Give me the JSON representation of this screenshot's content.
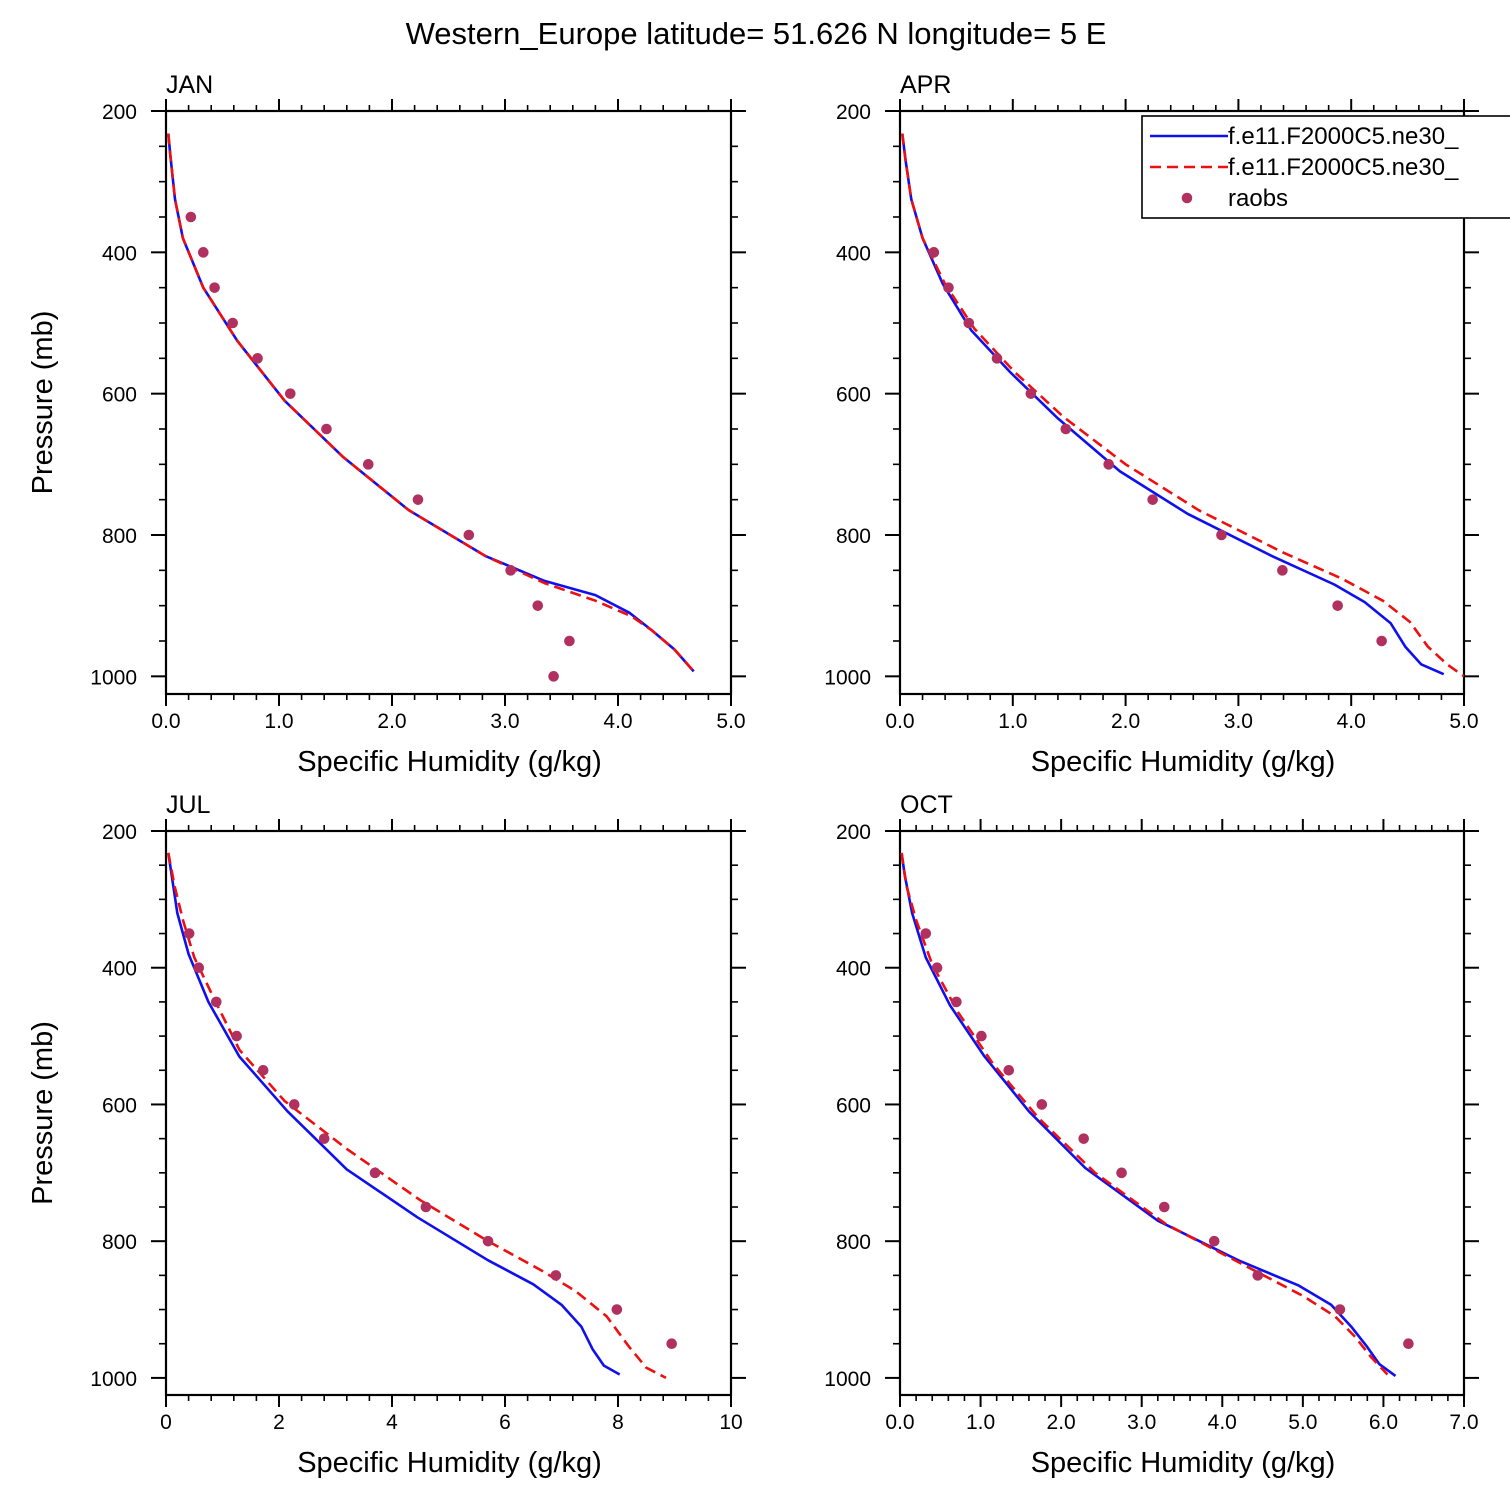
{
  "title": "Western_Europe  latitude= 51.626 N longitude= 5 E",
  "legend": {
    "placement": "top-right of APR panel",
    "entries": [
      "f.e11.F2000C5.ne30_",
      "f.e11.F2000C5.ne30_",
      "raobs"
    ]
  },
  "colors": {
    "model1": "#1010ee",
    "model2": "#ee1010",
    "obs": "#b03060"
  },
  "chart_data": [
    {
      "type": "line",
      "title": "JAN",
      "xlabel": "Specific Humidity (g/kg)",
      "ylabel": "Pressure (mb)",
      "xlim": [
        0,
        5
      ],
      "ylim": [
        200,
        1025
      ],
      "y_inverted": true,
      "xticks": [
        "0.0",
        "1.0",
        "2.0",
        "3.0",
        "4.0",
        "5.0"
      ],
      "yticks": [
        "200",
        "400",
        "600",
        "800",
        "1000"
      ],
      "series": [
        {
          "style": "solid",
          "points": [
            [
              0.02,
              232
            ],
            [
              0.04,
              265
            ],
            [
              0.08,
              325
            ],
            [
              0.15,
              380
            ],
            [
              0.33,
              450
            ],
            [
              0.63,
              525
            ],
            [
              1.05,
              610
            ],
            [
              1.57,
              690
            ],
            [
              2.15,
              765
            ],
            [
              2.83,
              830
            ],
            [
              3.35,
              865
            ],
            [
              3.8,
              885
            ],
            [
              4.1,
              910
            ],
            [
              4.3,
              935
            ],
            [
              4.5,
              962
            ],
            [
              4.67,
              993
            ]
          ]
        },
        {
          "style": "dashed",
          "points": [
            [
              0.02,
              232
            ],
            [
              0.04,
              265
            ],
            [
              0.08,
              325
            ],
            [
              0.15,
              380
            ],
            [
              0.33,
              450
            ],
            [
              0.63,
              525
            ],
            [
              1.05,
              610
            ],
            [
              1.57,
              690
            ],
            [
              2.15,
              765
            ],
            [
              2.83,
              830
            ],
            [
              3.35,
              868
            ],
            [
              3.8,
              893
            ],
            [
              4.12,
              915
            ],
            [
              4.3,
              935
            ],
            [
              4.5,
              962
            ],
            [
              4.67,
              993
            ]
          ]
        }
      ],
      "observations": [
        [
          0.22,
          350
        ],
        [
          0.33,
          400
        ],
        [
          0.43,
          450
        ],
        [
          0.59,
          500
        ],
        [
          0.81,
          550
        ],
        [
          1.1,
          600
        ],
        [
          1.42,
          650
        ],
        [
          1.79,
          700
        ],
        [
          2.23,
          750
        ],
        [
          2.68,
          800
        ],
        [
          3.05,
          850
        ],
        [
          3.29,
          900
        ],
        [
          3.57,
          950
        ],
        [
          3.43,
          1000
        ]
      ]
    },
    {
      "type": "line",
      "title": "APR",
      "xlabel": "Specific Humidity (g/kg)",
      "ylabel": "",
      "xlim": [
        0,
        5
      ],
      "ylim": [
        200,
        1025
      ],
      "y_inverted": true,
      "xticks": [
        "0.0",
        "1.0",
        "2.0",
        "3.0",
        "4.0",
        "5.0"
      ],
      "yticks": [
        "200",
        "400",
        "600",
        "800",
        "1000"
      ],
      "series": [
        {
          "style": "solid",
          "points": [
            [
              0.02,
              232
            ],
            [
              0.05,
              270
            ],
            [
              0.1,
              325
            ],
            [
              0.2,
              380
            ],
            [
              0.38,
              445
            ],
            [
              0.63,
              510
            ],
            [
              0.98,
              570
            ],
            [
              1.4,
              635
            ],
            [
              1.95,
              710
            ],
            [
              2.55,
              770
            ],
            [
              3.3,
              830
            ],
            [
              3.85,
              870
            ],
            [
              4.12,
              895
            ],
            [
              4.35,
              925
            ],
            [
              4.48,
              958
            ],
            [
              4.62,
              983
            ],
            [
              4.82,
              997
            ]
          ]
        },
        {
          "style": "dashed",
          "points": [
            [
              0.02,
              232
            ],
            [
              0.05,
              270
            ],
            [
              0.1,
              325
            ],
            [
              0.2,
              380
            ],
            [
              0.4,
              445
            ],
            [
              0.66,
              508
            ],
            [
              1.02,
              570
            ],
            [
              1.45,
              633
            ],
            [
              2.0,
              700
            ],
            [
              2.65,
              765
            ],
            [
              3.4,
              825
            ],
            [
              3.92,
              862
            ],
            [
              4.28,
              893
            ],
            [
              4.52,
              923
            ],
            [
              4.68,
              958
            ],
            [
              4.85,
              983
            ],
            [
              5.0,
              1000
            ]
          ]
        }
      ],
      "observations": [
        [
          0.3,
          400
        ],
        [
          0.43,
          450
        ],
        [
          0.61,
          500
        ],
        [
          0.86,
          550
        ],
        [
          1.16,
          600
        ],
        [
          1.47,
          650
        ],
        [
          1.85,
          700
        ],
        [
          2.24,
          750
        ],
        [
          2.85,
          800
        ],
        [
          3.39,
          850
        ],
        [
          3.88,
          900
        ],
        [
          4.27,
          950
        ]
      ]
    },
    {
      "type": "line",
      "title": "JUL",
      "xlabel": "Specific Humidity (g/kg)",
      "ylabel": "Pressure (mb)",
      "xlim": [
        0,
        10
      ],
      "ylim": [
        200,
        1025
      ],
      "y_inverted": true,
      "xticks": [
        "0",
        "2",
        "4",
        "6",
        "8",
        "10"
      ],
      "yticks": [
        "200",
        "400",
        "600",
        "800",
        "1000"
      ],
      "series": [
        {
          "style": "solid",
          "points": [
            [
              0.04,
              232
            ],
            [
              0.1,
              265
            ],
            [
              0.2,
              320
            ],
            [
              0.4,
              380
            ],
            [
              0.75,
              450
            ],
            [
              1.3,
              530
            ],
            [
              2.15,
              610
            ],
            [
              3.2,
              695
            ],
            [
              4.45,
              765
            ],
            [
              5.7,
              828
            ],
            [
              6.5,
              863
            ],
            [
              7.0,
              893
            ],
            [
              7.35,
              925
            ],
            [
              7.55,
              958
            ],
            [
              7.75,
              982
            ],
            [
              8.03,
              995
            ]
          ]
        },
        {
          "style": "dashed",
          "points": [
            [
              0.04,
              232
            ],
            [
              0.15,
              280
            ],
            [
              0.3,
              330
            ],
            [
              0.5,
              385
            ],
            [
              0.85,
              445
            ],
            [
              1.3,
              520
            ],
            [
              2.1,
              595
            ],
            [
              3.2,
              665
            ],
            [
              4.5,
              740
            ],
            [
              5.7,
              800
            ],
            [
              6.65,
              843
            ],
            [
              7.25,
              873
            ],
            [
              7.8,
              910
            ],
            [
              8.2,
              955
            ],
            [
              8.5,
              985
            ],
            [
              8.85,
              1000
            ]
          ]
        }
      ],
      "observations": [
        [
          0.41,
          350
        ],
        [
          0.58,
          400
        ],
        [
          0.89,
          450
        ],
        [
          1.25,
          500
        ],
        [
          1.72,
          550
        ],
        [
          2.27,
          600
        ],
        [
          2.8,
          650
        ],
        [
          3.7,
          700
        ],
        [
          4.6,
          750
        ],
        [
          5.7,
          800
        ],
        [
          6.9,
          850
        ],
        [
          7.98,
          900
        ],
        [
          8.95,
          950
        ]
      ]
    },
    {
      "type": "line",
      "title": "OCT",
      "xlabel": "Specific Humidity (g/kg)",
      "ylabel": "",
      "xlim": [
        0,
        7
      ],
      "ylim": [
        200,
        1025
      ],
      "y_inverted": true,
      "xticks": [
        "0.0",
        "1.0",
        "2.0",
        "3.0",
        "4.0",
        "5.0",
        "6.0",
        "7.0"
      ],
      "yticks": [
        "200",
        "400",
        "600",
        "800",
        "1000"
      ],
      "series": [
        {
          "style": "solid",
          "points": [
            [
              0.02,
              232
            ],
            [
              0.06,
              265
            ],
            [
              0.15,
              320
            ],
            [
              0.32,
              385
            ],
            [
              0.62,
              455
            ],
            [
              1.05,
              530
            ],
            [
              1.6,
              610
            ],
            [
              2.3,
              693
            ],
            [
              3.2,
              770
            ],
            [
              4.2,
              828
            ],
            [
              4.95,
              865
            ],
            [
              5.35,
              893
            ],
            [
              5.6,
              925
            ],
            [
              5.8,
              955
            ],
            [
              5.95,
              980
            ],
            [
              6.15,
              997
            ]
          ]
        },
        {
          "style": "dashed",
          "points": [
            [
              0.02,
              232
            ],
            [
              0.08,
              280
            ],
            [
              0.2,
              330
            ],
            [
              0.4,
              395
            ],
            [
              0.72,
              465
            ],
            [
              1.15,
              540
            ],
            [
              1.72,
              620
            ],
            [
              2.42,
              700
            ],
            [
              3.3,
              775
            ],
            [
              4.35,
              840
            ],
            [
              5.0,
              880
            ],
            [
              5.4,
              910
            ],
            [
              5.65,
              940
            ],
            [
              5.85,
              970
            ],
            [
              6.05,
              995
            ]
          ]
        }
      ],
      "observations": [
        [
          0.32,
          350
        ],
        [
          0.46,
          400
        ],
        [
          0.7,
          450
        ],
        [
          1.01,
          500
        ],
        [
          1.35,
          550
        ],
        [
          1.76,
          600
        ],
        [
          2.28,
          650
        ],
        [
          2.75,
          700
        ],
        [
          3.28,
          750
        ],
        [
          3.9,
          800
        ],
        [
          4.44,
          850
        ],
        [
          5.46,
          900
        ],
        [
          6.31,
          950
        ]
      ]
    }
  ]
}
